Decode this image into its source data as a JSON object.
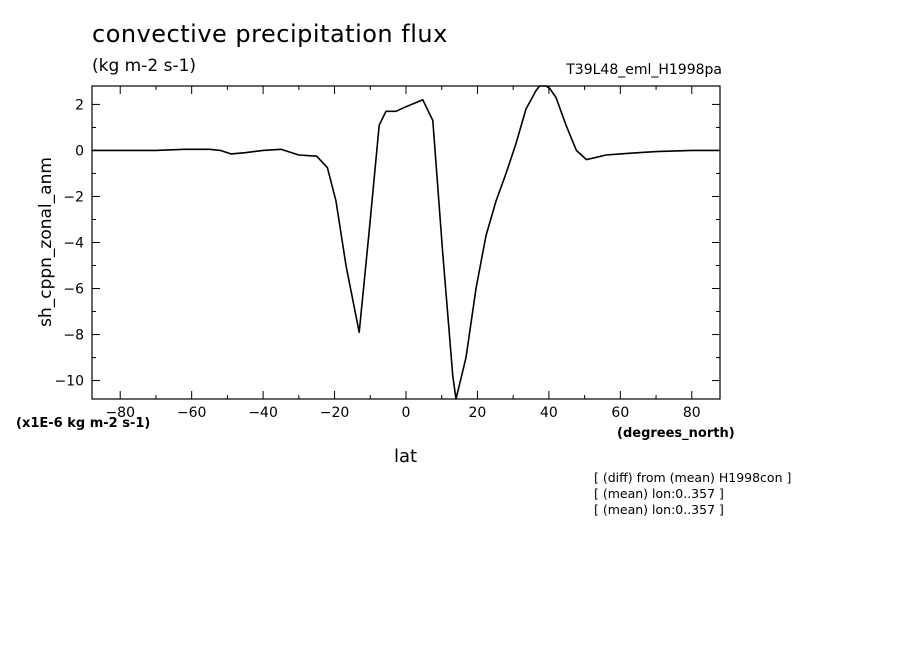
{
  "chart_data": {
    "type": "line",
    "title": "convective precipitation flux",
    "subtitle": "(kg m-2 s-1)",
    "run_label": "T39L48_eml_H1998pa",
    "xlabel": "lat",
    "x_unit_label": "(degrees_north)",
    "ylabel": "sh_cppn_zonal_anm",
    "y_unit_label": "(x1E-6 kg m-2 s-1)",
    "notes": [
      "[ (diff) from (mean) H1998con ]",
      "[ (mean) lon:0..357 ]",
      "[ (mean) lon:0..357 ]"
    ],
    "xlim": [
      -87.9,
      87.9
    ],
    "ylim": [
      -10.8,
      2.8
    ],
    "xticks": [
      -80,
      -60,
      -40,
      -20,
      0,
      20,
      40,
      60,
      80
    ],
    "xtick_labels": [
      "−80",
      "−60",
      "−40",
      "−20",
      "0",
      "20",
      "40",
      "60",
      "80"
    ],
    "yticks": [
      -10,
      -8,
      -6,
      -4,
      -2,
      0,
      2
    ],
    "ytick_labels": [
      "−10",
      "−8",
      "−6",
      "−4",
      "−2",
      "0",
      "2"
    ],
    "grid": false,
    "series": [
      {
        "x": [
          -87.9,
          -80,
          -70,
          -62,
          -55,
          -52,
          -49,
          -45,
          -40,
          -35,
          -30,
          -25,
          -22,
          -19.6,
          -16.8,
          -13.1,
          -10.3,
          -7.5,
          -5.6,
          -2.8,
          0,
          4.7,
          7.5,
          10.3,
          13.1,
          14,
          16.8,
          19.6,
          22.4,
          25.2,
          28,
          30.8,
          33.6,
          36.4,
          37.4,
          39.2,
          40.2,
          42,
          44.8,
          47.7,
          50.5,
          53.3,
          56,
          60,
          65,
          70,
          80,
          87.9
        ],
        "y": [
          0,
          0,
          0,
          0.05,
          0.05,
          0.0,
          -0.15,
          -0.1,
          0.0,
          0.05,
          -0.2,
          -0.25,
          -0.75,
          -2.2,
          -5.0,
          -7.9,
          -3.5,
          1.1,
          1.7,
          1.7,
          1.9,
          2.2,
          1.3,
          -4.5,
          -9.8,
          -10.8,
          -9.0,
          -6.0,
          -3.7,
          -2.2,
          -1.0,
          0.3,
          1.8,
          2.6,
          2.8,
          2.8,
          2.7,
          2.3,
          1.1,
          0.0,
          -0.4,
          -0.3,
          -0.2,
          -0.15,
          -0.1,
          -0.05,
          0,
          0
        ]
      }
    ]
  }
}
